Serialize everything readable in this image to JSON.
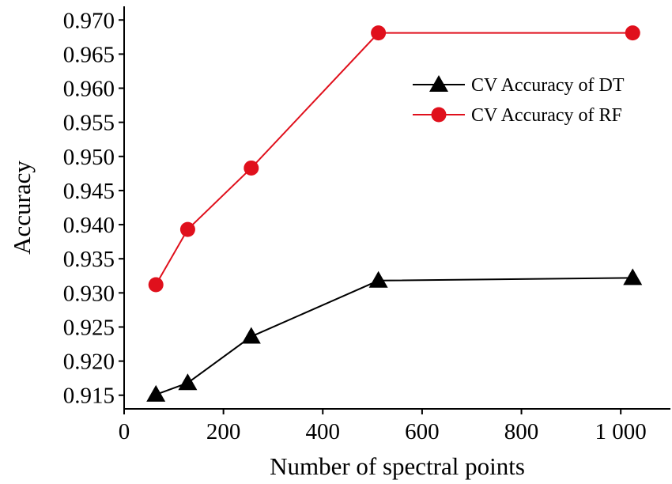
{
  "chart_data": {
    "type": "line",
    "title": "",
    "xlabel": "Number of spectral points",
    "ylabel": "Accuracy",
    "xlim": [
      0,
      1100
    ],
    "ylim": [
      0.913,
      0.972
    ],
    "xticks": [
      0,
      200,
      400,
      600,
      800,
      1000
    ],
    "xtick_labels": [
      "0",
      "200",
      "400",
      "600",
      "800",
      "1 000"
    ],
    "yticks": [
      0.915,
      0.92,
      0.925,
      0.93,
      0.935,
      0.94,
      0.945,
      0.95,
      0.955,
      0.96,
      0.965,
      0.97
    ],
    "ytick_labels": [
      "0.915",
      "0.920",
      "0.925",
      "0.930",
      "0.935",
      "0.940",
      "0.945",
      "0.950",
      "0.955",
      "0.960",
      "0.965",
      "0.970"
    ],
    "grid": false,
    "legend": "top-right",
    "x": [
      64,
      128,
      256,
      512,
      1024
    ],
    "series": [
      {
        "name": "CV Accuracy of DT",
        "marker": "triangle",
        "color": "#000000",
        "values": [
          0.9151,
          0.9168,
          0.9236,
          0.9318,
          0.9322
        ]
      },
      {
        "name": "CV Accuracy of RF",
        "marker": "circle",
        "color": "#e0101c",
        "values": [
          0.9312,
          0.9393,
          0.9483,
          0.9681,
          0.9681
        ]
      }
    ]
  }
}
